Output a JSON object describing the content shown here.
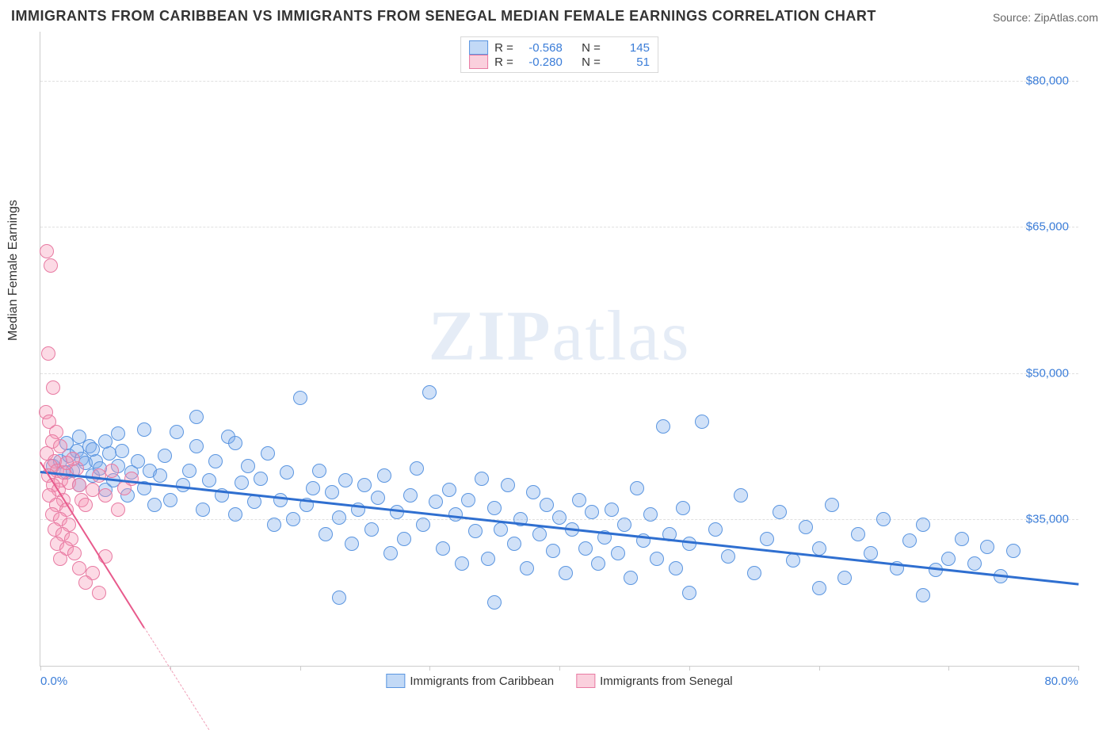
{
  "title": "IMMIGRANTS FROM CARIBBEAN VS IMMIGRANTS FROM SENEGAL MEDIAN FEMALE EARNINGS CORRELATION CHART",
  "source": "Source: ZipAtlas.com",
  "y_axis_label": "Median Female Earnings",
  "watermark_zip": "ZIP",
  "watermark_atlas": "atlas",
  "chart": {
    "type": "scatter",
    "xlim": [
      0,
      80
    ],
    "ylim": [
      20000,
      85000
    ],
    "y_ticks": [
      35000,
      50000,
      65000,
      80000
    ],
    "y_tick_labels": [
      "$35,000",
      "$50,000",
      "$65,000",
      "$80,000"
    ],
    "x_ticks": [
      0,
      10,
      20,
      30,
      40,
      50,
      60,
      70,
      80
    ],
    "x_label_min": "0.0%",
    "x_label_max": "80.0%",
    "background_color": "#ffffff",
    "grid_color": "#e0e0e0",
    "series": [
      {
        "name": "Immigrants from Caribbean",
        "color_fill": "rgba(120,170,235,0.35)",
        "color_stroke": "#5a95e0",
        "trend_color": "#2f6fd0",
        "marker_radius": 8,
        "R": "-0.568",
        "N": "145",
        "trend": {
          "x1": 0,
          "y1": 40000,
          "x2": 80,
          "y2": 28500
        },
        "points": [
          [
            1.0,
            40500
          ],
          [
            1.5,
            41000
          ],
          [
            2.0,
            39800
          ],
          [
            2.2,
            41500
          ],
          [
            2.5,
            40000
          ],
          [
            2.8,
            42000
          ],
          [
            3.0,
            38500
          ],
          [
            3.2,
            41200
          ],
          [
            3.5,
            40800
          ],
          [
            3.8,
            42500
          ],
          [
            4.0,
            39500
          ],
          [
            4.3,
            41000
          ],
          [
            4.6,
            40200
          ],
          [
            5.0,
            38000
          ],
          [
            5.3,
            41800
          ],
          [
            5.6,
            39000
          ],
          [
            6.0,
            40500
          ],
          [
            6.3,
            42000
          ],
          [
            6.7,
            37500
          ],
          [
            7.0,
            39800
          ],
          [
            7.5,
            41000
          ],
          [
            8.0,
            38200
          ],
          [
            8.4,
            40000
          ],
          [
            8.8,
            36500
          ],
          [
            9.2,
            39500
          ],
          [
            9.6,
            41500
          ],
          [
            10.0,
            37000
          ],
          [
            10.5,
            44000
          ],
          [
            11.0,
            38500
          ],
          [
            11.5,
            40000
          ],
          [
            12.0,
            45500
          ],
          [
            12.5,
            36000
          ],
          [
            13.0,
            39000
          ],
          [
            13.5,
            41000
          ],
          [
            14.0,
            37500
          ],
          [
            14.5,
            43500
          ],
          [
            15.0,
            35500
          ],
          [
            15.5,
            38800
          ],
          [
            16.0,
            40500
          ],
          [
            16.5,
            36800
          ],
          [
            17.0,
            39200
          ],
          [
            17.5,
            41800
          ],
          [
            18.0,
            34500
          ],
          [
            18.5,
            37000
          ],
          [
            19.0,
            39800
          ],
          [
            19.5,
            35000
          ],
          [
            20.0,
            47500
          ],
          [
            20.5,
            36500
          ],
          [
            21.0,
            38200
          ],
          [
            21.5,
            40000
          ],
          [
            22.0,
            33500
          ],
          [
            22.5,
            37800
          ],
          [
            23.0,
            35200
          ],
          [
            23.5,
            39000
          ],
          [
            24.0,
            32500
          ],
          [
            24.5,
            36000
          ],
          [
            25.0,
            38500
          ],
          [
            25.5,
            34000
          ],
          [
            26.0,
            37200
          ],
          [
            26.5,
            39500
          ],
          [
            27.0,
            31500
          ],
          [
            27.5,
            35800
          ],
          [
            28.0,
            33000
          ],
          [
            28.5,
            37500
          ],
          [
            29.0,
            40200
          ],
          [
            29.5,
            34500
          ],
          [
            30.0,
            48000
          ],
          [
            30.5,
            36800
          ],
          [
            31.0,
            32000
          ],
          [
            31.5,
            38000
          ],
          [
            32.0,
            35500
          ],
          [
            32.5,
            30500
          ],
          [
            33.0,
            37000
          ],
          [
            33.5,
            33800
          ],
          [
            34.0,
            39200
          ],
          [
            34.5,
            31000
          ],
          [
            35.0,
            36200
          ],
          [
            35.5,
            34000
          ],
          [
            36.0,
            38500
          ],
          [
            36.5,
            32500
          ],
          [
            37.0,
            35000
          ],
          [
            37.5,
            30000
          ],
          [
            38.0,
            37800
          ],
          [
            38.5,
            33500
          ],
          [
            39.0,
            36500
          ],
          [
            39.5,
            31800
          ],
          [
            40.0,
            35200
          ],
          [
            40.5,
            29500
          ],
          [
            41.0,
            34000
          ],
          [
            41.5,
            37000
          ],
          [
            42.0,
            32000
          ],
          [
            42.5,
            35800
          ],
          [
            43.0,
            30500
          ],
          [
            43.5,
            33200
          ],
          [
            44.0,
            36000
          ],
          [
            44.5,
            31500
          ],
          [
            45.0,
            34500
          ],
          [
            45.5,
            29000
          ],
          [
            46.0,
            38200
          ],
          [
            46.5,
            32800
          ],
          [
            47.0,
            35500
          ],
          [
            47.5,
            31000
          ],
          [
            48.0,
            44500
          ],
          [
            48.5,
            33500
          ],
          [
            49.0,
            30000
          ],
          [
            49.5,
            36200
          ],
          [
            50.0,
            32500
          ],
          [
            51.0,
            45000
          ],
          [
            52.0,
            34000
          ],
          [
            53.0,
            31200
          ],
          [
            54.0,
            37500
          ],
          [
            55.0,
            29500
          ],
          [
            56.0,
            33000
          ],
          [
            57.0,
            35800
          ],
          [
            58.0,
            30800
          ],
          [
            59.0,
            34200
          ],
          [
            60.0,
            32000
          ],
          [
            61.0,
            36500
          ],
          [
            62.0,
            29000
          ],
          [
            63.0,
            33500
          ],
          [
            64.0,
            31500
          ],
          [
            65.0,
            35000
          ],
          [
            66.0,
            30000
          ],
          [
            67.0,
            32800
          ],
          [
            68.0,
            34500
          ],
          [
            69.0,
            29800
          ],
          [
            70.0,
            31000
          ],
          [
            71.0,
            33000
          ],
          [
            72.0,
            30500
          ],
          [
            73.0,
            32200
          ],
          [
            74.0,
            29200
          ],
          [
            75.0,
            31800
          ],
          [
            23.0,
            27000
          ],
          [
            35.0,
            26500
          ],
          [
            50.0,
            27500
          ],
          [
            60.0,
            28000
          ],
          [
            68.0,
            27200
          ],
          [
            5.0,
            43000
          ],
          [
            8.0,
            44200
          ],
          [
            15.0,
            42800
          ],
          [
            2.0,
            42800
          ],
          [
            3.0,
            43500
          ],
          [
            4.0,
            42200
          ],
          [
            6.0,
            43800
          ],
          [
            12.0,
            42500
          ]
        ]
      },
      {
        "name": "Immigrants from Senegal",
        "color_fill": "rgba(245,150,180,0.35)",
        "color_stroke": "#e87aa2",
        "trend_color": "#e85a8c",
        "marker_radius": 8,
        "R": "-0.280",
        "N": "51",
        "trend": {
          "x1": 0,
          "y1": 41000,
          "x2": 8,
          "y2": 24000
        },
        "trend_dash": {
          "x1": 8,
          "y1": 24000,
          "x2": 13,
          "y2": 13500
        },
        "points": [
          [
            0.5,
            62500
          ],
          [
            0.8,
            61000
          ],
          [
            0.6,
            52000
          ],
          [
            1.0,
            48500
          ],
          [
            0.4,
            46000
          ],
          [
            0.7,
            45000
          ],
          [
            1.2,
            44000
          ],
          [
            0.9,
            43000
          ],
          [
            1.5,
            42500
          ],
          [
            0.5,
            41800
          ],
          [
            1.1,
            41000
          ],
          [
            0.8,
            40500
          ],
          [
            1.3,
            40000
          ],
          [
            0.6,
            39500
          ],
          [
            1.6,
            39000
          ],
          [
            1.0,
            38500
          ],
          [
            1.4,
            38000
          ],
          [
            0.7,
            37500
          ],
          [
            1.8,
            37000
          ],
          [
            1.2,
            36500
          ],
          [
            2.0,
            36000
          ],
          [
            0.9,
            35500
          ],
          [
            1.5,
            35000
          ],
          [
            2.2,
            34500
          ],
          [
            1.1,
            34000
          ],
          [
            1.7,
            33500
          ],
          [
            2.4,
            33000
          ],
          [
            1.3,
            32500
          ],
          [
            2.0,
            32000
          ],
          [
            2.6,
            31500
          ],
          [
            1.5,
            31000
          ],
          [
            2.2,
            38800
          ],
          [
            2.8,
            40200
          ],
          [
            1.8,
            39800
          ],
          [
            3.0,
            38500
          ],
          [
            2.5,
            41200
          ],
          [
            3.2,
            37000
          ],
          [
            2.0,
            40800
          ],
          [
            3.5,
            36500
          ],
          [
            4.0,
            38000
          ],
          [
            4.5,
            39500
          ],
          [
            5.0,
            37500
          ],
          [
            5.5,
            40000
          ],
          [
            6.0,
            36000
          ],
          [
            6.5,
            38200
          ],
          [
            7.0,
            39200
          ],
          [
            3.0,
            30000
          ],
          [
            4.0,
            29500
          ],
          [
            5.0,
            31200
          ],
          [
            3.5,
            28500
          ],
          [
            4.5,
            27500
          ]
        ]
      }
    ]
  },
  "legend_top": {
    "r_label": "R =",
    "n_label": "N ="
  },
  "legend_bottom": [
    "Immigrants from Caribbean",
    "Immigrants from Senegal"
  ]
}
